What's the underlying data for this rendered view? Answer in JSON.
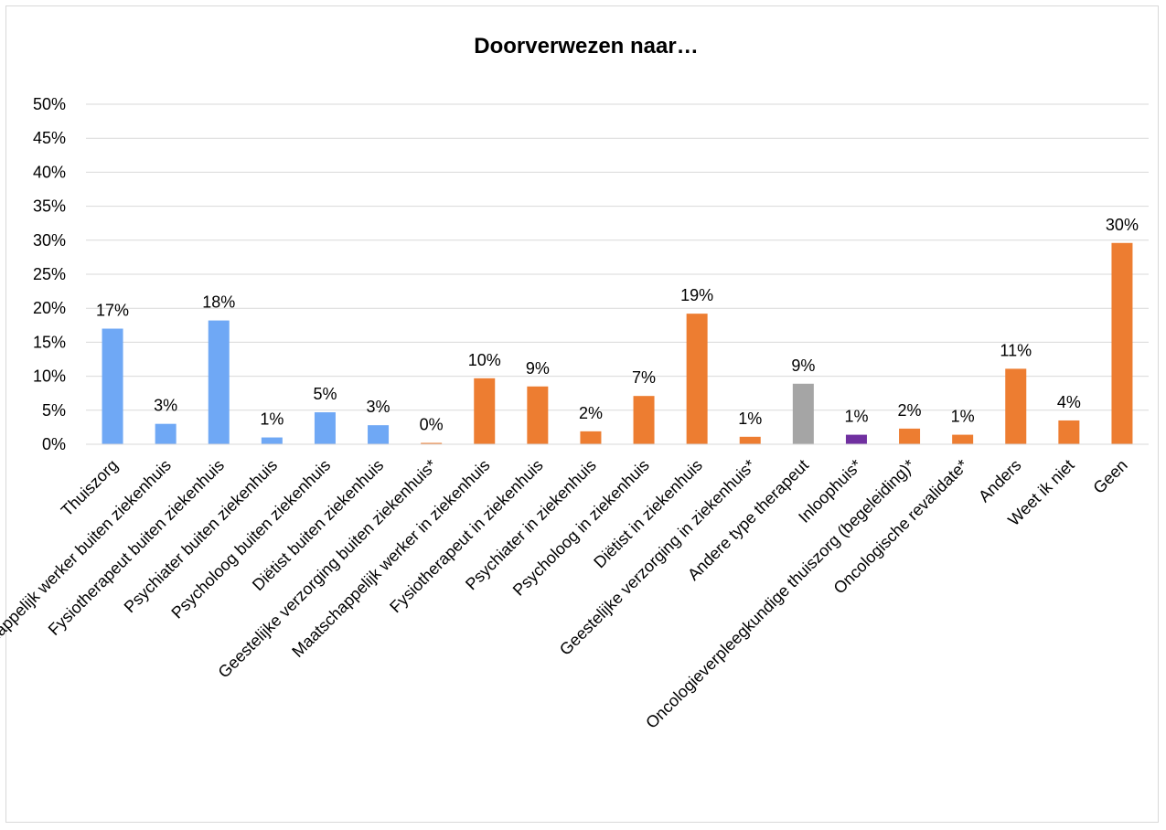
{
  "chart_data": {
    "type": "bar",
    "title": "Doorverwezen naar…",
    "xlabel": "",
    "ylabel": "",
    "ylim": [
      0,
      50
    ],
    "y_ticks": [
      "0%",
      "5%",
      "10%",
      "15%",
      "20%",
      "25%",
      "30%",
      "35%",
      "40%",
      "45%",
      "50%"
    ],
    "grid": true,
    "legend": "none",
    "colors": {
      "blue": "#6fa8f5",
      "orange": "#ed7d31",
      "gray": "#a5a5a5",
      "purple": "#7030a0"
    },
    "categories": [
      "Thuiszorg",
      "Maatschappelijk werker buiten ziekenhuis",
      "Fysiotherapeut buiten ziekenhuis",
      "Psychiater buiten ziekenhuis",
      "Psycholoog buiten ziekenhuis",
      "Diëtist buiten ziekenhuis",
      "Geestelijke verzorging buiten ziekenhuis*",
      "Maatschappelijk werker in ziekenhuis",
      "Fysiotherapeut in ziekenhuis",
      "Psychiater in ziekenhuis",
      "Psycholoog in ziekenhuis",
      "Diëtist in ziekenhuis",
      "Geestelijke verzorging in ziekenhuis*",
      "Andere type therapeut",
      "Inloophuis*",
      "Oncologieverpleegkundige thuiszorg (begeleiding)*",
      "Oncologische revalidate*",
      "Anders",
      "Weet ik niet",
      "Geen"
    ],
    "values": [
      17.0,
      3.0,
      18.2,
      1.0,
      4.7,
      2.8,
      0.2,
      9.7,
      8.5,
      1.9,
      7.1,
      19.2,
      1.1,
      8.9,
      1.4,
      2.3,
      1.4,
      11.1,
      3.5,
      29.6
    ],
    "labels": [
      "17%",
      "3%",
      "18%",
      "1%",
      "5%",
      "3%",
      "0%",
      "10%",
      "9%",
      "2%",
      "7%",
      "19%",
      "1%",
      "9%",
      "1%",
      "2%",
      "1%",
      "11%",
      "4%",
      "30%"
    ],
    "bar_colors": [
      "blue",
      "blue",
      "blue",
      "blue",
      "blue",
      "blue",
      "orange",
      "orange",
      "orange",
      "orange",
      "orange",
      "orange",
      "orange",
      "gray",
      "purple",
      "orange",
      "orange",
      "orange",
      "orange",
      "orange"
    ]
  }
}
